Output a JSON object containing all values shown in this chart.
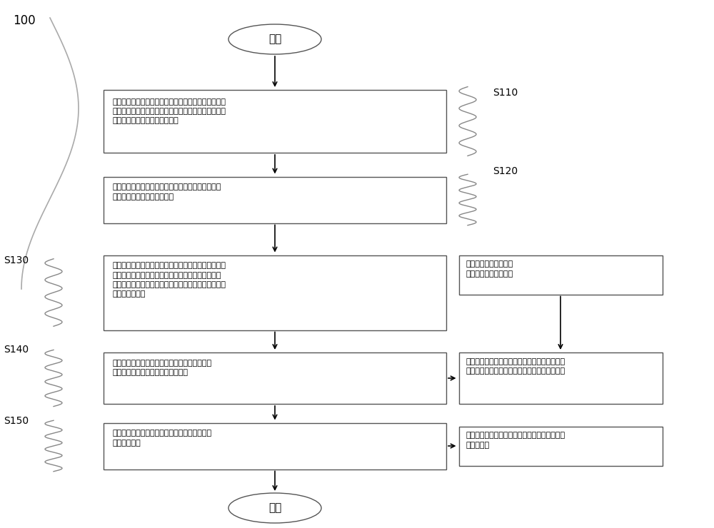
{
  "background_color": "#ffffff",
  "font_family": "SimSun",
  "label_100": "100",
  "label_s110": "S110",
  "label_s120": "S120",
  "label_s130": "S130",
  "label_s140": "S140",
  "label_s150": "S150",
  "start_text": "开始",
  "end_text": "结束",
  "box1_text": "传感器预设间歇模式，建立若干时间节点，在若干时间\n节点两两之间的时间区内，传感器进入休眠状态，并在\n时间节点时被唤醒进入工作状态",
  "box2_text": "在时间节点时，传感器采集设备的局部放电信号，并\n将局部放电信号上传至分析站",
  "box3_text": "分析站建立局部放电信号的标准化模型，在分析站确定\n获取局部放电信号后，对局部放电信号进行分离和分\n类，从中提取异常信号，并对异常信号进行分析判断是\n否满足告警条件",
  "box4_text": "在确定满足告警条件后，生成包含有异常信号分\n析数据的告警消息，并上传至工作站",
  "box5_text": "工作站依据告警消息对该设备的局部进行检修，\n直至告警解除",
  "box_right1_text": "传感器预设连续模式，\n连续模式默认工作状态",
  "box_right2_text": "在响应于确定满足告警条件时，该传感器由间歇\n模式切换至连续模式，传感器进入连续工作状态",
  "box_right3_text": "在响应于告警解除后，该传感器由连续模式切换\n至间歇模式"
}
